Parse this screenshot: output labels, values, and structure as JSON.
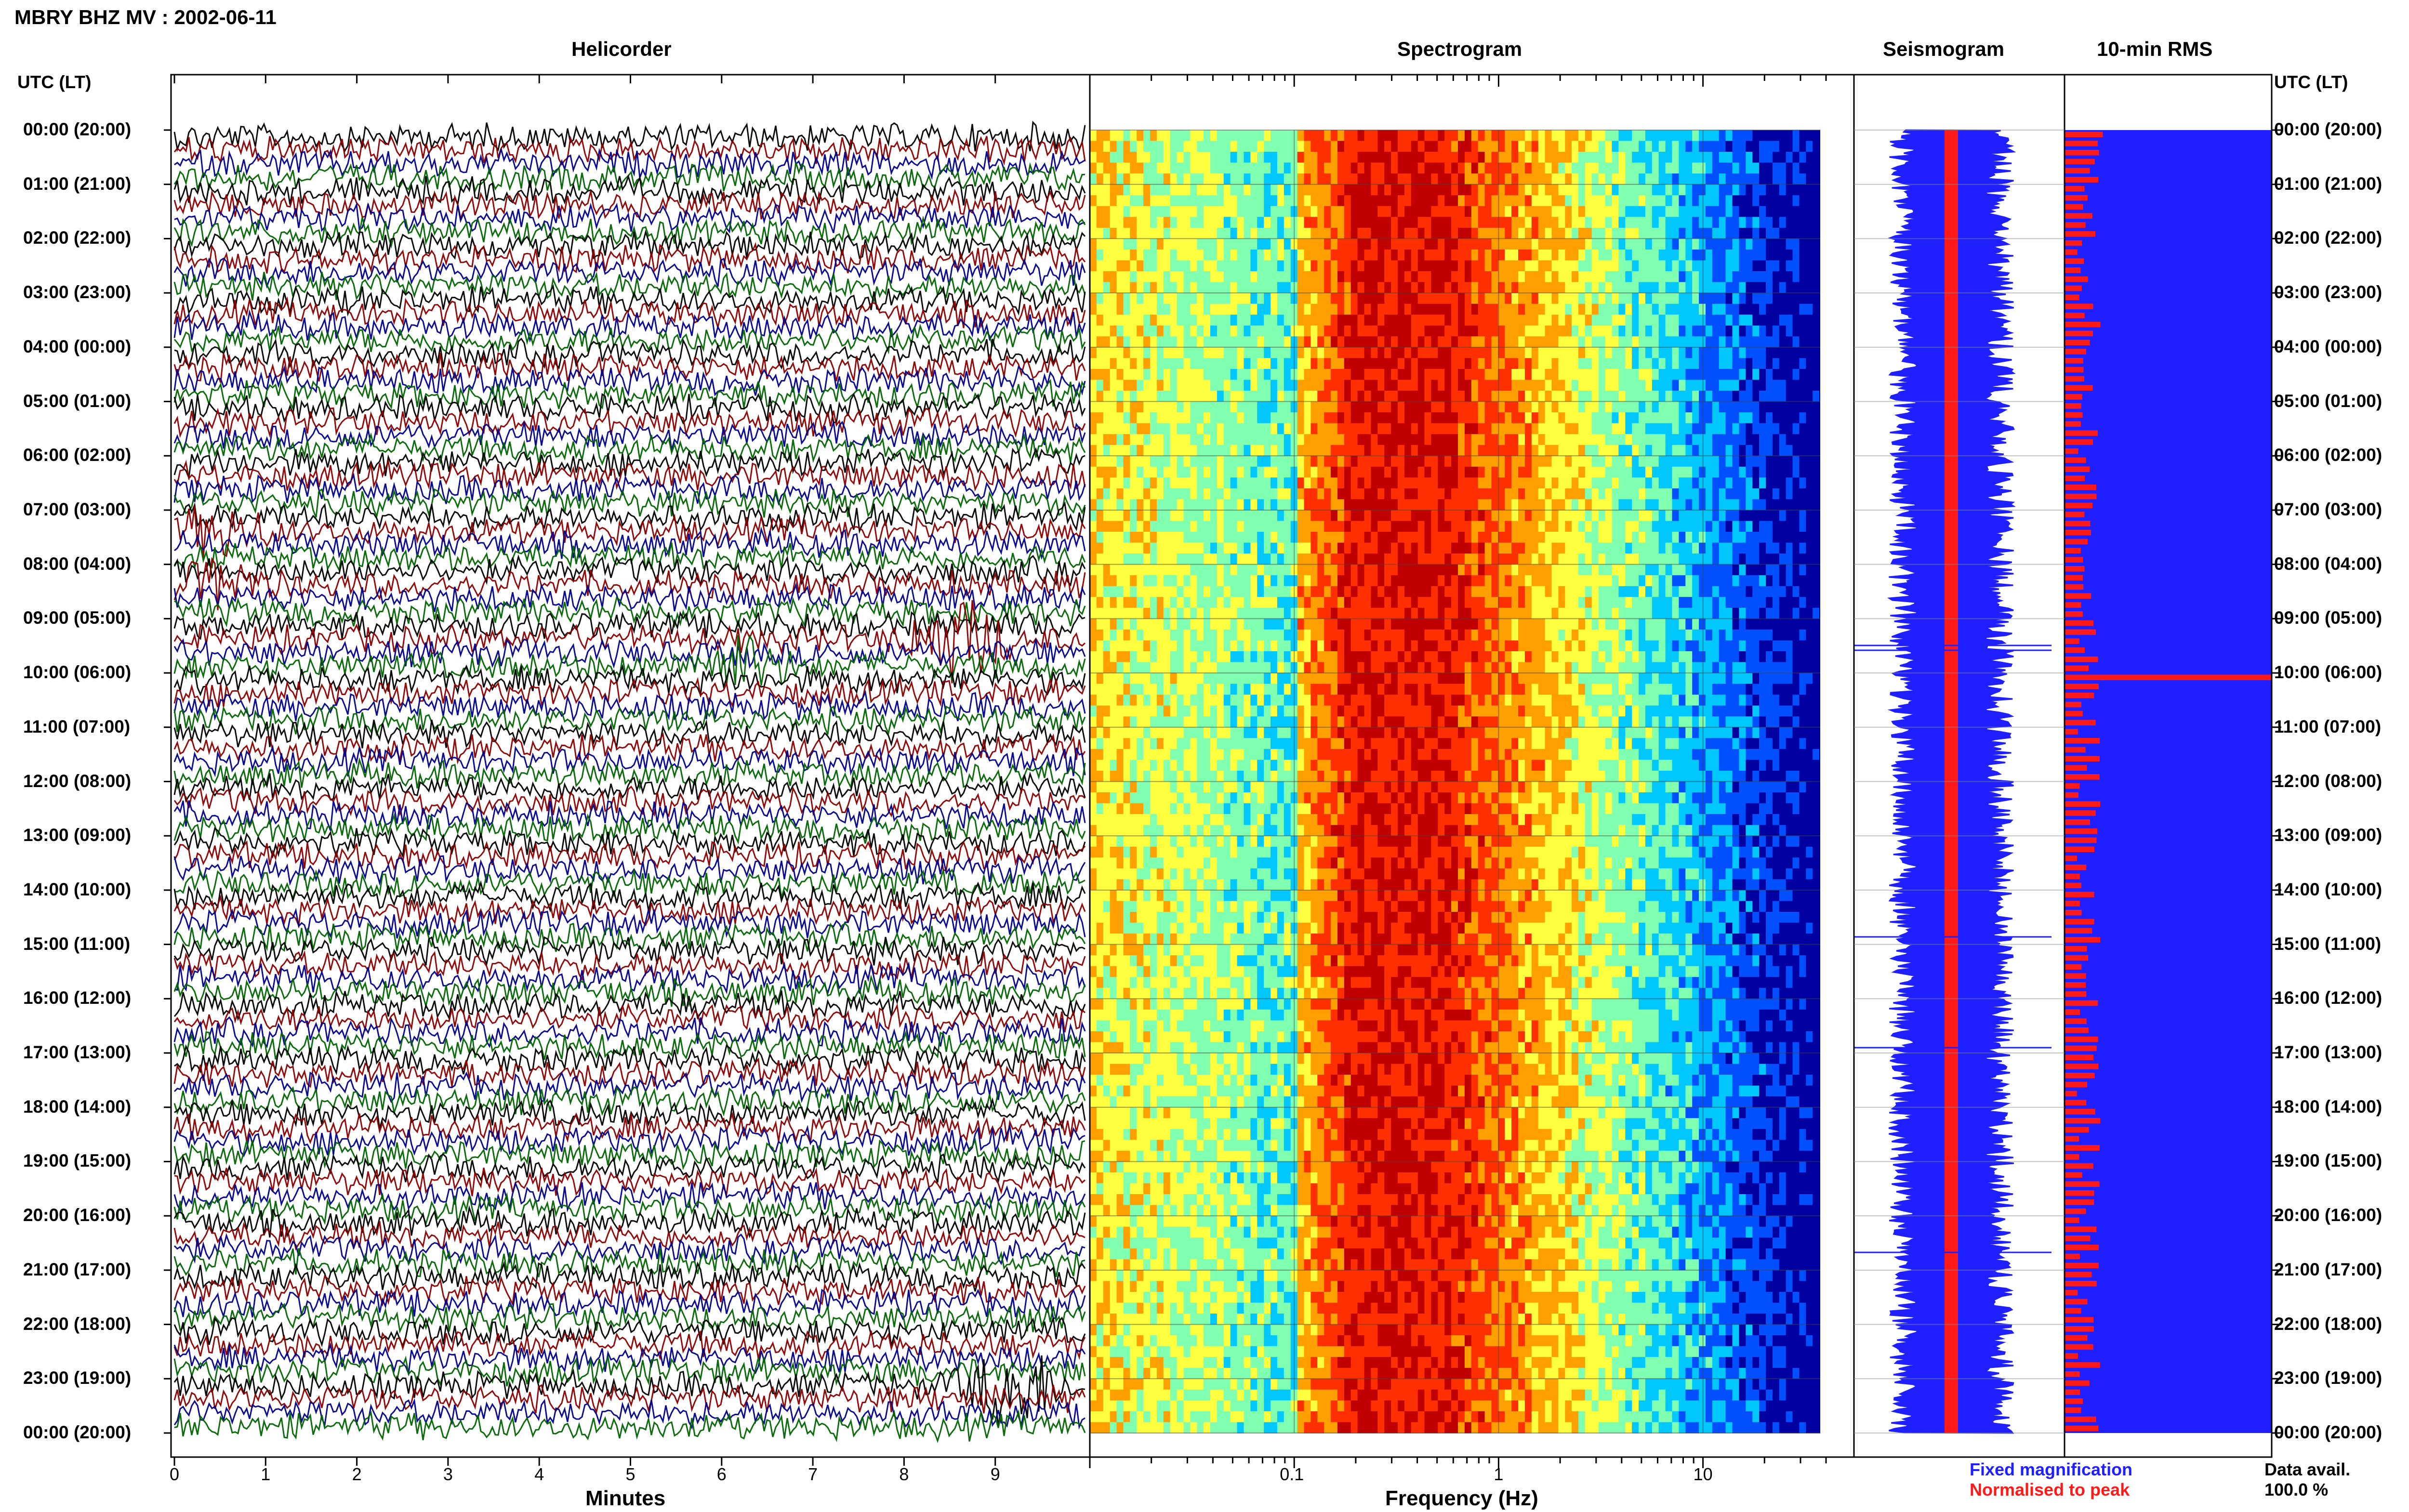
{
  "header": {
    "title": "MBRY BHZ MV : 2002-06-11"
  },
  "panels": {
    "helicorder": "Helicorder",
    "spectrogram": "Spectrogram",
    "seismogram": "Seismogram",
    "rms": "10-min RMS"
  },
  "axis_headers": {
    "left": "UTC (LT)",
    "right": "UTC (LT)"
  },
  "time_labels": [
    "00:00 (20:00)",
    "01:00 (21:00)",
    "02:00 (22:00)",
    "03:00 (23:00)",
    "04:00 (00:00)",
    "05:00 (01:00)",
    "06:00 (02:00)",
    "07:00 (03:00)",
    "08:00 (04:00)",
    "09:00 (05:00)",
    "10:00 (06:00)",
    "11:00 (07:00)",
    "12:00 (08:00)",
    "13:00 (09:00)",
    "14:00 (10:00)",
    "15:00 (11:00)",
    "16:00 (12:00)",
    "17:00 (13:00)",
    "18:00 (14:00)",
    "19:00 (15:00)",
    "20:00 (16:00)",
    "21:00 (17:00)",
    "22:00 (18:00)",
    "23:00 (19:00)",
    "00:00 (20:00)"
  ],
  "legend": {
    "fixed": "Fixed magnification",
    "normalised": "Normalised to peak",
    "fixed_color": "#1f1fff",
    "normalised_color": "#ff1a1a"
  },
  "data_avail": {
    "label": "Data avail.",
    "value": "100.0 %"
  },
  "chart_data": [
    {
      "type": "line",
      "panel": "helicorder",
      "xlabel": "Minutes",
      "ylabel": "UTC (LT)",
      "xlim": [
        0,
        10
      ],
      "x_ticks": [
        "0",
        "1",
        "2",
        "3",
        "4",
        "5",
        "6",
        "7",
        "8",
        "9"
      ],
      "trace_colors": [
        "#000000",
        "#8b0000",
        "#00008b",
        "#006400"
      ],
      "events": [
        {
          "time": "07:50",
          "minute": 0.5,
          "color": "#8b0000",
          "amplitude": "large"
        },
        {
          "time": "09:00",
          "minute": 8.6,
          "color": "#8b0000",
          "amplitude": "large"
        },
        {
          "time": "09:30",
          "minute": 6.2,
          "color": "#006400",
          "amplitude": "medium"
        },
        {
          "time": "22:50",
          "minute": 9.2,
          "color": "#000000",
          "amplitude": "large"
        }
      ]
    },
    {
      "type": "heatmap",
      "panel": "spectrogram",
      "xlabel": "Frequency (Hz)",
      "xscale": "log",
      "xlim": [
        0.01,
        40
      ],
      "x_ticks": [
        "0.1",
        "1",
        "10"
      ],
      "colormap": [
        "#0000a0",
        "#0050ff",
        "#00c8ff",
        "#80ffb0",
        "#ffff40",
        "#ffa000",
        "#ff3000",
        "#c00000"
      ],
      "peak_band_hz": [
        0.2,
        0.6
      ]
    },
    {
      "type": "line",
      "panel": "seismogram",
      "series": [
        {
          "name": "Fixed magnification",
          "color": "#1f1fff"
        },
        {
          "name": "Normalised to peak",
          "color": "#ff1a1a"
        }
      ]
    },
    {
      "type": "bar",
      "panel": "10-min RMS",
      "series": [
        {
          "name": "Fixed magnification",
          "color": "#1f1fff",
          "fill": 1.0
        },
        {
          "name": "Normalised to peak",
          "color": "#ff1a1a"
        }
      ],
      "peak_time": "09:55"
    }
  ]
}
